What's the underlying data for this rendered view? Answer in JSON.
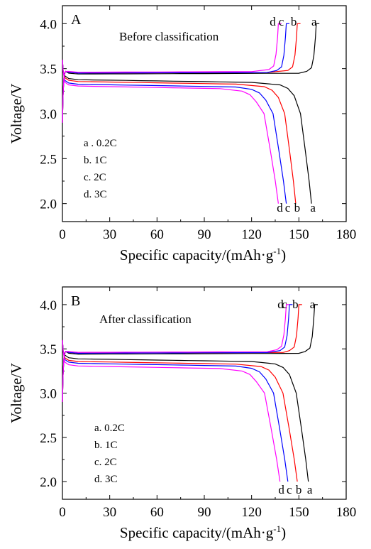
{
  "chart_data": [
    {
      "type": "line",
      "panel": "A",
      "condition": "Before classification",
      "xlabel": "Specific capacity/(mAh·g",
      "xlabel_sup": "-1",
      "xlabel_end": ")",
      "ylabel": "Voltage/V",
      "xlim": [
        0,
        180
      ],
      "ylim": [
        1.8,
        4.2
      ],
      "x_ticks": [
        "0",
        "30",
        "60",
        "90",
        "120",
        "150",
        "180"
      ],
      "y_ticks": [
        "2.0",
        "2.5",
        "3.0",
        "3.5",
        "4.0"
      ],
      "grid": false,
      "legend": [
        "a . 0.2C",
        "b. 1C",
        "c. 2C",
        "d. 3C"
      ],
      "series": [
        {
          "name": "a",
          "color": "#000000",
          "charge": {
            "plateau": 3.44,
            "end_x": 161
          },
          "discharge": {
            "plateau": 3.38,
            "knee_x": 148,
            "end_x": 158
          }
        },
        {
          "name": "b",
          "color": "#ff0000",
          "charge": {
            "plateau": 3.45,
            "end_x": 149
          },
          "discharge": {
            "plateau": 3.36,
            "knee_x": 138,
            "end_x": 148
          }
        },
        {
          "name": "c",
          "color": "#0000ff",
          "charge": {
            "plateau": 3.45,
            "end_x": 142
          },
          "discharge": {
            "plateau": 3.33,
            "knee_x": 130,
            "end_x": 142
          }
        },
        {
          "name": "d",
          "color": "#ff00ff",
          "charge": {
            "plateau": 3.46,
            "end_x": 137
          },
          "discharge": {
            "plateau": 3.31,
            "knee_x": 124,
            "end_x": 137
          }
        }
      ],
      "annotations": {
        "top": [
          "d",
          "c",
          "b",
          "a"
        ],
        "bottom": [
          "d",
          "c",
          "b",
          "a"
        ]
      }
    },
    {
      "type": "line",
      "panel": "B",
      "condition": "After classification",
      "xlabel": "Specific capacity/(mAh·g",
      "xlabel_sup": "-1",
      "xlabel_end": ")",
      "ylabel": "Voltage/V",
      "xlim": [
        0,
        180
      ],
      "ylim": [
        1.8,
        4.2
      ],
      "x_ticks": [
        "0",
        "30",
        "60",
        "90",
        "120",
        "150",
        "180"
      ],
      "y_ticks": [
        "2.0",
        "2.5",
        "3.0",
        "3.5",
        "4.0"
      ],
      "grid": false,
      "legend": [
        "a. 0.2C",
        "b. 1C",
        "c. 2C",
        "d. 3C"
      ],
      "series": [
        {
          "name": "a",
          "color": "#000000",
          "charge": {
            "plateau": 3.44,
            "end_x": 160
          },
          "discharge": {
            "plateau": 3.39,
            "knee_x": 145,
            "end_x": 156
          }
        },
        {
          "name": "b",
          "color": "#ff0000",
          "charge": {
            "plateau": 3.45,
            "end_x": 150
          },
          "discharge": {
            "plateau": 3.36,
            "knee_x": 136,
            "end_x": 149
          }
        },
        {
          "name": "c",
          "color": "#0000ff",
          "charge": {
            "plateau": 3.45,
            "end_x": 144
          },
          "discharge": {
            "plateau": 3.34,
            "knee_x": 130,
            "end_x": 143
          }
        },
        {
          "name": "d",
          "color": "#ff00ff",
          "charge": {
            "plateau": 3.46,
            "end_x": 142
          },
          "discharge": {
            "plateau": 3.31,
            "knee_x": 124,
            "end_x": 138
          }
        }
      ],
      "annotations": {
        "top": [
          "d",
          "c",
          "b",
          "a"
        ],
        "bottom": [
          "d",
          "c",
          "b",
          "a"
        ]
      }
    }
  ]
}
